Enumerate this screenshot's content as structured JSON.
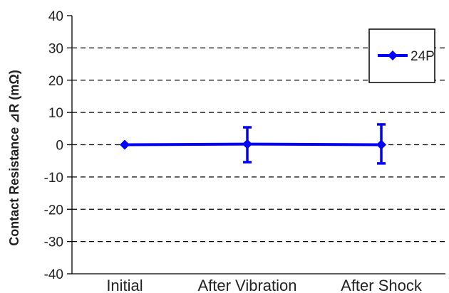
{
  "chart_data": {
    "type": "line",
    "title": "",
    "xlabel": "",
    "ylabel": "Contact Resistance ⊿R (mΩ)",
    "ylim": [
      -40,
      40
    ],
    "yticks": [
      40,
      30,
      20,
      10,
      0,
      -10,
      -20,
      -30,
      -40
    ],
    "grid": "horizontal dashed",
    "legend_position": "top-right",
    "categories": [
      "Initial",
      "After Vibration",
      "After Shock"
    ],
    "series": [
      {
        "name": "24P",
        "color": "#0000ff",
        "marker": "diamond",
        "values": [
          0,
          0.2,
          0
        ],
        "error_low": [
          0,
          -5.6,
          -5.8
        ],
        "error_high": [
          0,
          5.2,
          6.3
        ]
      }
    ]
  }
}
